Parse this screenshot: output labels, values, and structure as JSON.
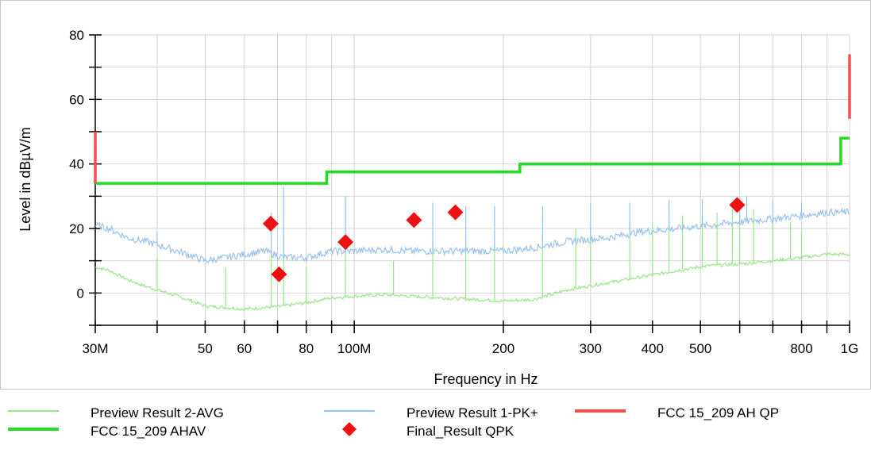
{
  "chart_data": {
    "type": "line",
    "xlabel": "Frequency in Hz",
    "ylabel": "Level in dBµV/m",
    "xscale": "log",
    "xlim": [
      30000000,
      1000000000
    ],
    "ylim": [
      -10,
      80
    ],
    "grid": true,
    "legend_placement": "bottom",
    "x_ticks": [
      {
        "value": 30000000,
        "label": "30M"
      },
      {
        "value": 50000000,
        "label": "50"
      },
      {
        "value": 60000000,
        "label": "60"
      },
      {
        "value": 80000000,
        "label": "80"
      },
      {
        "value": 100000000,
        "label": "100M"
      },
      {
        "value": 200000000,
        "label": "200"
      },
      {
        "value": 300000000,
        "label": "300"
      },
      {
        "value": 400000000,
        "label": "400"
      },
      {
        "value": 500000000,
        "label": "500"
      },
      {
        "value": 800000000,
        "label": "800"
      },
      {
        "value": 1000000000,
        "label": "1G"
      }
    ],
    "y_ticks": [
      {
        "value": 0,
        "label": "0"
      },
      {
        "value": 20,
        "label": "20"
      },
      {
        "value": 40,
        "label": "40"
      },
      {
        "value": 60,
        "label": "60"
      },
      {
        "value": 80,
        "label": "80"
      }
    ],
    "series": [
      {
        "name": "Preview Result 2-AVG",
        "color": "#99e68a",
        "style": "thin",
        "x": [
          30000000,
          32000000,
          35000000,
          38000000,
          42000000,
          46000000,
          50000000,
          55000000,
          60000000,
          66000000,
          72000000,
          80000000,
          90000000,
          100000000,
          115000000,
          130000000,
          150000000,
          175000000,
          200000000,
          230000000,
          270000000,
          320000000,
          380000000,
          450000000,
          520000000,
          600000000,
          700000000,
          800000000,
          900000000,
          1000000000
        ],
        "y": [
          8,
          7,
          4,
          2,
          0,
          -2,
          -4,
          -4.5,
          -5,
          -4.5,
          -4,
          -3,
          -1.5,
          -1,
          -0.5,
          -1,
          -1.5,
          -2,
          -2.5,
          -2,
          1,
          3,
          5,
          7,
          8.5,
          9,
          10,
          11,
          12,
          12
        ]
      },
      {
        "name": "Preview Result 1-PK+",
        "color": "#99c2ee",
        "style": "thin",
        "x": [
          30000000,
          32000000,
          35000000,
          38000000,
          42000000,
          46000000,
          50000000,
          55000000,
          60000000,
          66000000,
          72000000,
          80000000,
          90000000,
          100000000,
          115000000,
          130000000,
          150000000,
          175000000,
          200000000,
          230000000,
          270000000,
          320000000,
          380000000,
          450000000,
          520000000,
          600000000,
          700000000,
          800000000,
          900000000,
          1000000000
        ],
        "y": [
          21,
          20,
          17,
          16,
          14,
          12,
          10,
          11,
          12,
          13,
          11,
          11,
          13,
          13,
          13.5,
          13,
          13,
          13,
          13,
          14,
          16,
          17,
          19,
          20,
          21,
          22,
          23,
          24,
          25,
          25
        ]
      },
      {
        "name": "FCC 15_209 AHAV",
        "color": "#22dd22",
        "style": "thick",
        "x": [
          30000000,
          88000000,
          88000000,
          216000000,
          216000000,
          960000000,
          960000000,
          1000000000
        ],
        "y": [
          34,
          34,
          37.5,
          37.5,
          40,
          40,
          48,
          48
        ]
      },
      {
        "name": "FCC 15_209 AH QP",
        "color": "#f05050",
        "style": "thick",
        "x": [
          30000000,
          30000000,
          1000000000,
          1000000000
        ],
        "y": [
          34,
          50,
          54,
          74
        ]
      }
    ],
    "peaks_pk": [
      {
        "x": 40000000,
        "y": 19
      },
      {
        "x": 68000000,
        "y": 25
      },
      {
        "x": 72000000,
        "y": 33
      },
      {
        "x": 96000000,
        "y": 30
      },
      {
        "x": 144000000,
        "y": 28
      },
      {
        "x": 168000000,
        "y": 27
      },
      {
        "x": 192000000,
        "y": 27
      },
      {
        "x": 240000000,
        "y": 27
      },
      {
        "x": 300000000,
        "y": 28
      },
      {
        "x": 360000000,
        "y": 28
      },
      {
        "x": 432000000,
        "y": 29
      },
      {
        "x": 504000000,
        "y": 29
      },
      {
        "x": 600000000,
        "y": 29
      },
      {
        "x": 620000000,
        "y": 30
      },
      {
        "x": 700000000,
        "y": 29
      },
      {
        "x": 800000000,
        "y": 28
      }
    ],
    "peaks_avg": [
      {
        "x": 40000000,
        "y": 11
      },
      {
        "x": 55000000,
        "y": 8
      },
      {
        "x": 68000000,
        "y": 13
      },
      {
        "x": 72000000,
        "y": 18
      },
      {
        "x": 80000000,
        "y": 8
      },
      {
        "x": 96000000,
        "y": 15
      },
      {
        "x": 120000000,
        "y": 10
      },
      {
        "x": 144000000,
        "y": 16
      },
      {
        "x": 168000000,
        "y": 16
      },
      {
        "x": 192000000,
        "y": 14
      },
      {
        "x": 240000000,
        "y": 18
      },
      {
        "x": 280000000,
        "y": 20
      },
      {
        "x": 300000000,
        "y": 21
      },
      {
        "x": 360000000,
        "y": 22
      },
      {
        "x": 400000000,
        "y": 22
      },
      {
        "x": 432000000,
        "y": 23
      },
      {
        "x": 460000000,
        "y": 24
      },
      {
        "x": 504000000,
        "y": 24
      },
      {
        "x": 540000000,
        "y": 25
      },
      {
        "x": 580000000,
        "y": 26
      },
      {
        "x": 600000000,
        "y": 27
      },
      {
        "x": 640000000,
        "y": 26
      },
      {
        "x": 700000000,
        "y": 25
      },
      {
        "x": 760000000,
        "y": 22
      },
      {
        "x": 800000000,
        "y": 19
      }
    ],
    "markers": {
      "name": "Final_Result QPK",
      "color": "#ee1111",
      "points": [
        {
          "x": 67800000,
          "y": 21.5
        },
        {
          "x": 70500000,
          "y": 5.8
        },
        {
          "x": 96000000,
          "y": 15.8
        },
        {
          "x": 132000000,
          "y": 22.6
        },
        {
          "x": 160000000,
          "y": 25
        },
        {
          "x": 593000000,
          "y": 27.3
        }
      ]
    },
    "legend": [
      {
        "label": "Preview Result 2-AVG",
        "kind": "line",
        "color": "#99e68a",
        "width": 2
      },
      {
        "label": "Preview Result 1-PK+",
        "kind": "line",
        "color": "#99c2ee",
        "width": 2
      },
      {
        "label": "FCC 15_209 AH QP",
        "kind": "line",
        "color": "#f05050",
        "width": 4
      },
      {
        "label": "FCC 15_209 AHAV",
        "kind": "line",
        "color": "#22dd22",
        "width": 4
      },
      {
        "label": "Final_Result QPK",
        "kind": "diamond",
        "color": "#ee1111"
      }
    ]
  }
}
